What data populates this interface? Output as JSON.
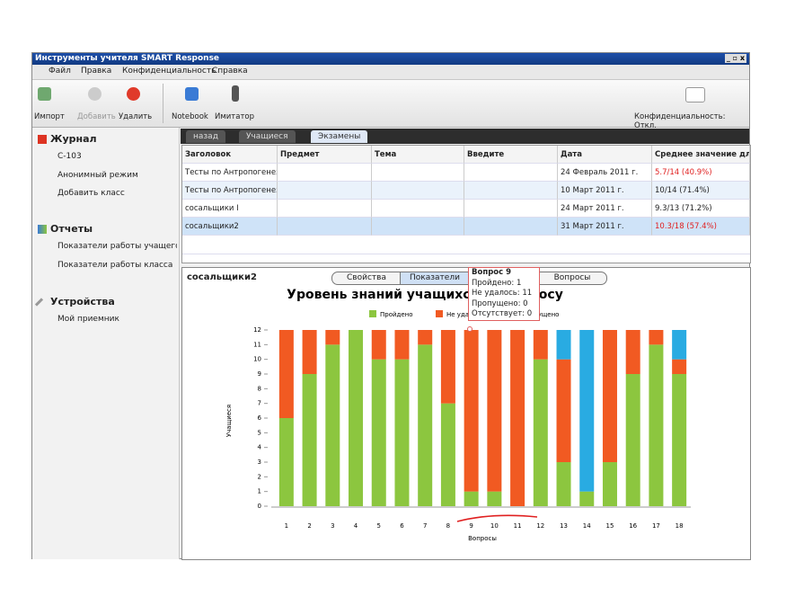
{
  "window": {
    "title": "Инструменты учителя SMART Response"
  },
  "menu": [
    "Файл",
    "Правка",
    "Конфиденциальность",
    "Справка"
  ],
  "toolbar": {
    "import": "Импорт",
    "add": "Добавить",
    "delete": "Удалить",
    "notebook": "Notebook",
    "simulator": "Имитатор",
    "privacy": "Конфиденциальность: Откл."
  },
  "sidebar": {
    "journal": {
      "title": "Журнал",
      "items": [
        "С-103",
        "Анонимный режим",
        "Добавить класс"
      ]
    },
    "reports": {
      "title": "Отчеты",
      "items": [
        "Показатели работы учащегося",
        "Показатели работы класса"
      ]
    },
    "devices": {
      "title": "Устройства",
      "items": [
        "Мой приемник"
      ]
    }
  },
  "tabs": [
    "назад",
    "Учащиеся",
    "Экзамены"
  ],
  "table": {
    "columns": [
      "Заголовок",
      "Предмет",
      "Тема",
      "Введите",
      "Дата",
      "Среднее значение для"
    ],
    "rows": [
      {
        "title": "Тесты по Антропогенез",
        "date": "24 Февраль 2011 г.",
        "score": "5.7/14  (40.9%)",
        "color": "#e02020"
      },
      {
        "title": "Тесты по Антропогенез",
        "date": "10 Март 2011 г.",
        "score": "10/14   (71.4%)",
        "color": "#222222"
      },
      {
        "title": "сосальщики I",
        "date": "24 Март 2011 г.",
        "score": "9.3/13   (71.2%)",
        "color": "#222222"
      },
      {
        "title": "сосальщики2",
        "date": "31 Март 2011 г.",
        "score": "10.3/18 (57.4%)",
        "color": "#e02020"
      }
    ]
  },
  "panel": {
    "title": "сосальщики2",
    "tabs": [
      "Свойства",
      "Показатели",
      "Вопросы"
    ]
  },
  "tooltip": [
    "Вопрос 9",
    "Пройдено: 1",
    "Не удалось: 11",
    "Пропущено: 0",
    "Отсутствует: 0"
  ],
  "chart_data": {
    "type": "stacked_bar",
    "title": "Уровень знаний учащихся по вопросу",
    "x_label": "Вопросы",
    "y_label": "Учащиеся",
    "categories": [
      "1",
      "2",
      "3",
      "4",
      "5",
      "6",
      "7",
      "8",
      "9",
      "10",
      "11",
      "12",
      "13",
      "14",
      "15",
      "16",
      "17",
      "18"
    ],
    "series": [
      {
        "name": "Пройдено",
        "color": "#8cc63f",
        "values": [
          6,
          9,
          11,
          12,
          10,
          10,
          11,
          7,
          1,
          1,
          0,
          10,
          3,
          1,
          3,
          9,
          11,
          9
        ]
      },
      {
        "name": "Не удалось",
        "color": "#f15a22",
        "values": [
          6,
          3,
          1,
          0,
          2,
          2,
          1,
          5,
          11,
          11,
          12,
          2,
          7,
          0,
          9,
          3,
          1,
          1
        ]
      },
      {
        "name": "Пропущено",
        "color": "#29abe2",
        "values": [
          0,
          0,
          0,
          0,
          0,
          0,
          0,
          0,
          0,
          0,
          0,
          0,
          2,
          11,
          0,
          0,
          0,
          2
        ]
      }
    ],
    "ylim": [
      0,
      12
    ],
    "yticks": [
      0,
      1,
      2,
      3,
      4,
      5,
      6,
      7,
      8,
      9,
      10,
      11,
      12
    ],
    "grid": false
  }
}
